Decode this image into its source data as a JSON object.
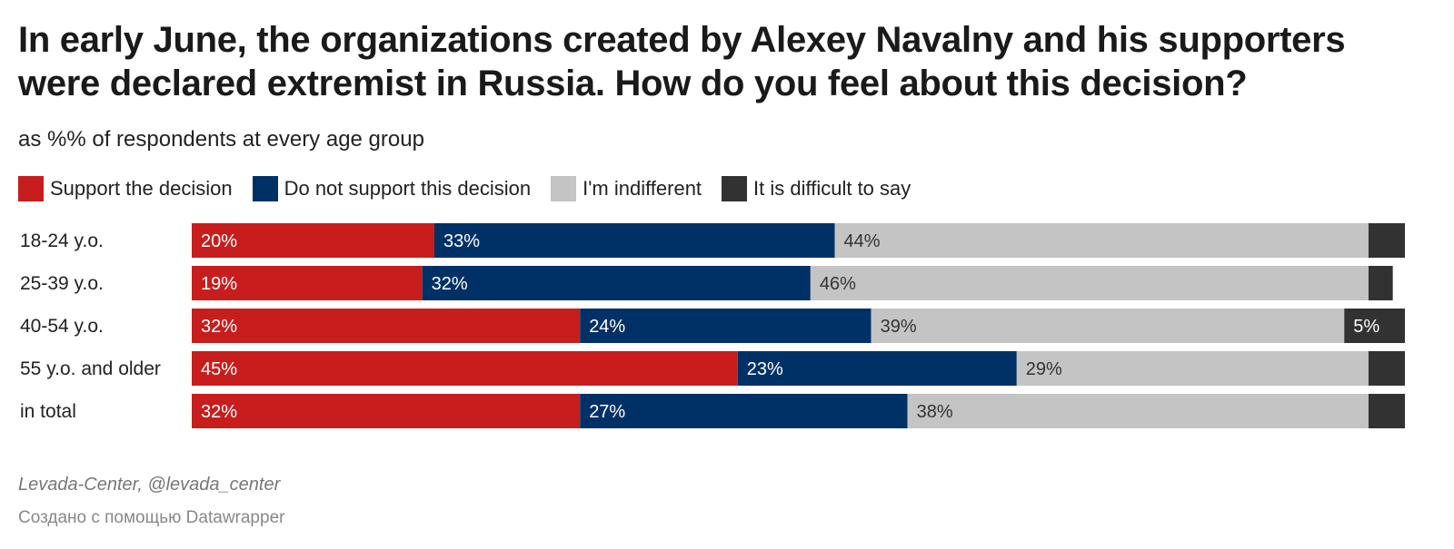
{
  "title": "In early June, the organizations created by Alexey Navalny and his supporters were declared extremist in Russia. How do you feel about this decision?",
  "subtitle": "as %% of respondents at every age group",
  "colors": {
    "support": "#c71e1d",
    "not_support": "#003166",
    "indifferent": "#c4c4c4",
    "difficult": "#323232"
  },
  "chart_data": {
    "type": "bar",
    "orientation": "horizontal",
    "stacked": true,
    "categories": [
      "18-24 y.o.",
      "25-39 y.o.",
      "40-54 y.o.",
      "55 y.o. and older",
      "in total"
    ],
    "series": [
      {
        "name": "Support the decision",
        "color": "#c71e1d",
        "values": [
          20,
          19,
          32,
          45,
          32
        ]
      },
      {
        "name": "Do not support this decision",
        "color": "#003166",
        "values": [
          33,
          32,
          24,
          23,
          27
        ]
      },
      {
        "name": "I'm indifferent",
        "color": "#c4c4c4",
        "values": [
          44,
          46,
          39,
          29,
          38
        ]
      },
      {
        "name": "It is difficult to say",
        "color": "#323232",
        "values": [
          3,
          2,
          5,
          3,
          3
        ]
      }
    ],
    "data_labels": [
      [
        "20%",
        "33%",
        "44%",
        ""
      ],
      [
        "19%",
        "32%",
        "46%",
        ""
      ],
      [
        "32%",
        "24%",
        "39%",
        "5%"
      ],
      [
        "45%",
        "23%",
        "29%",
        ""
      ],
      [
        "32%",
        "27%",
        "38%",
        ""
      ]
    ],
    "xlim": [
      0,
      100
    ],
    "legend_position": "top-left",
    "grid": false
  },
  "footer": {
    "source": "Levada-Center, @levada_center",
    "credit": "Создано с помощью Datawrapper"
  }
}
